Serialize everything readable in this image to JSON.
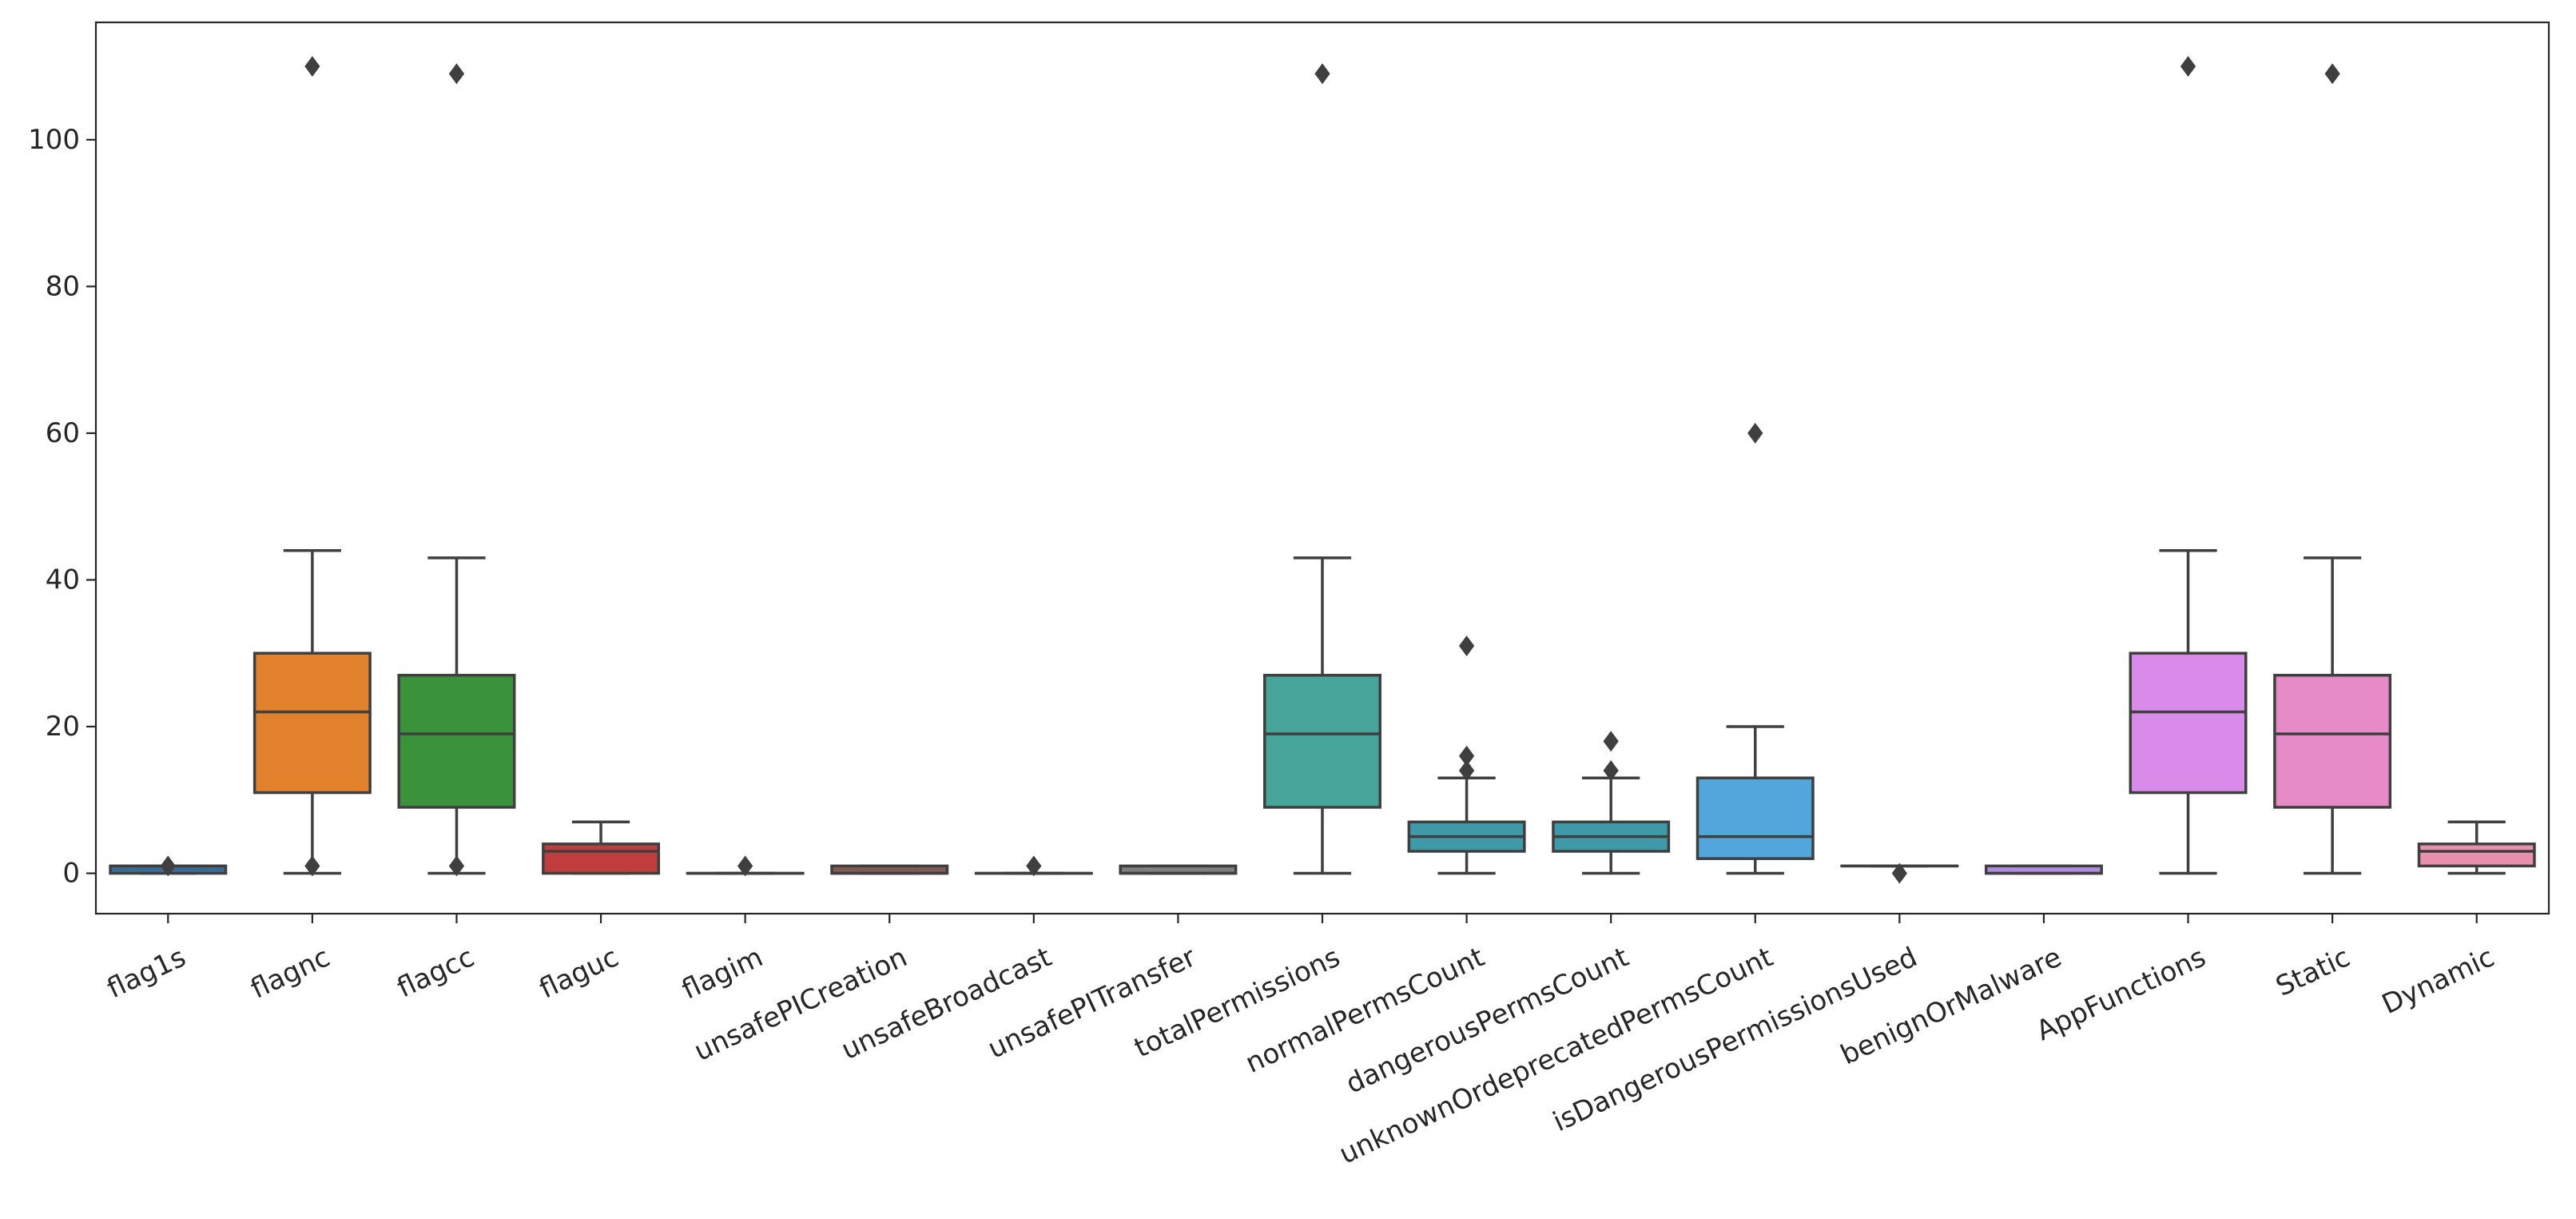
{
  "chart_data": {
    "type": "box",
    "title": "",
    "xlabel": "",
    "ylabel": "",
    "ylim": [
      -5.5,
      116
    ],
    "yticks": [
      0,
      20,
      40,
      60,
      80,
      100
    ],
    "grid": false,
    "categories": [
      "flag1s",
      "flagnc",
      "flagcc",
      "flaguc",
      "flagim",
      "unsafePICreation",
      "unsafeBroadcast",
      "unsafePITransfer",
      "totalPermissions",
      "normalPermsCount",
      "dangerousPermsCount",
      "unknownOrdeprecatedPermsCount",
      "isDangerousPermissionsUsed",
      "benignOrMalware",
      "AppFunctions",
      "Static",
      "Dynamic"
    ],
    "boxes": [
      {
        "name": "flag1s",
        "color": "#3a6c99",
        "whislo": 0,
        "q1": 0,
        "med": 1,
        "q3": 1,
        "whishi": 1,
        "fliers": [
          1
        ]
      },
      {
        "name": "flagnc",
        "color": "#e1812c",
        "whislo": 0,
        "q1": 11,
        "med": 22,
        "q3": 30,
        "whishi": 44,
        "fliers": [
          110,
          1
        ]
      },
      {
        "name": "flagcc",
        "color": "#3a923a",
        "whislo": 0,
        "q1": 9,
        "med": 19,
        "q3": 27,
        "whishi": 43,
        "fliers": [
          109,
          1
        ]
      },
      {
        "name": "flaguc",
        "color": "#c03d3e",
        "whislo": 0,
        "q1": 0,
        "med": 3,
        "q3": 4,
        "whishi": 7,
        "fliers": []
      },
      {
        "name": "flagim",
        "color": "#9372b2",
        "whislo": 0,
        "q1": 0,
        "med": 0,
        "q3": 0,
        "whishi": 0,
        "fliers": [
          1
        ]
      },
      {
        "name": "unsafePICreation",
        "color": "#845b53",
        "whislo": 0,
        "q1": 0,
        "med": 0,
        "q3": 1,
        "whishi": 1,
        "fliers": []
      },
      {
        "name": "unsafeBroadcast",
        "color": "#d684bd",
        "whislo": 0,
        "q1": 0,
        "med": 0,
        "q3": 0,
        "whishi": 0,
        "fliers": [
          1
        ]
      },
      {
        "name": "unsafePITransfer",
        "color": "#7f7f7f",
        "whislo": 0,
        "q1": 0,
        "med": 0,
        "q3": 1,
        "whishi": 1,
        "fliers": []
      },
      {
        "name": "totalPermissions",
        "color": "#47a69c",
        "whislo": 0,
        "q1": 9,
        "med": 19,
        "q3": 27,
        "whishi": 43,
        "fliers": [
          109
        ]
      },
      {
        "name": "normalPermsCount",
        "color": "#3e9aa8",
        "whislo": 0,
        "q1": 3,
        "med": 5,
        "q3": 7,
        "whishi": 13,
        "fliers": [
          31,
          16,
          14
        ]
      },
      {
        "name": "dangerousPermsCount",
        "color": "#3e9aa8",
        "whislo": 0,
        "q1": 3,
        "med": 5,
        "q3": 7,
        "whishi": 13,
        "fliers": [
          18,
          14
        ]
      },
      {
        "name": "unknownOrdeprecatedPermsCount",
        "color": "#51a7dc",
        "whislo": 0,
        "q1": 2,
        "med": 5,
        "q3": 13,
        "whishi": 20,
        "fliers": [
          60
        ]
      },
      {
        "name": "isDangerousPermissionsUsed",
        "color": "#7b8cd9",
        "whislo": 1,
        "q1": 1,
        "med": 1,
        "q3": 1,
        "whishi": 1,
        "fliers": [
          0
        ]
      },
      {
        "name": "benignOrMalware",
        "color": "#b18be4",
        "whislo": 0,
        "q1": 0,
        "med": 0,
        "q3": 1,
        "whishi": 1,
        "fliers": []
      },
      {
        "name": "AppFunctions",
        "color": "#d88be8",
        "whislo": 0,
        "q1": 11,
        "med": 22,
        "q3": 30,
        "whishi": 44,
        "fliers": [
          110
        ]
      },
      {
        "name": "Static",
        "color": "#e68ac8",
        "whislo": 0,
        "q1": 9,
        "med": 19,
        "q3": 27,
        "whishi": 43,
        "fliers": [
          109
        ]
      },
      {
        "name": "Dynamic",
        "color": "#e88fae",
        "whislo": 0,
        "q1": 1,
        "med": 3,
        "q3": 4,
        "whishi": 7,
        "fliers": []
      }
    ]
  }
}
